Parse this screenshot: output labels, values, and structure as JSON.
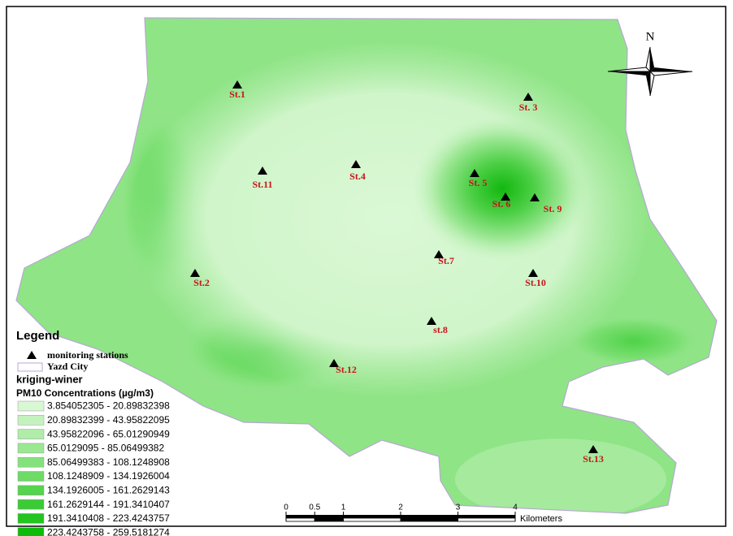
{
  "map": {
    "north_label": "N",
    "stations": [
      "St.1",
      "St. 3",
      "St.11",
      "St.4",
      "St. 5",
      "St. 6",
      "St. 9",
      "St.7",
      "St.2",
      "St.10",
      "st.8",
      "St.12",
      "St.13"
    ],
    "legend": {
      "title": "Legend",
      "station_symbol": "monitoring stations",
      "boundary": "Yazd City",
      "layer": "kriging-winer",
      "field": "PM10 Concentrations (µg/m3)",
      "classes": [
        {
          "label": "3.854052305 - 20.89832398",
          "color": "#d8f7d3"
        },
        {
          "label": "20.89832399 - 43.95822095",
          "color": "#c4f2be"
        },
        {
          "label": "43.95822096 - 65.01290949",
          "color": "#afeda8"
        },
        {
          "label": "65.0129095 - 85.06499382",
          "color": "#9ae892"
        },
        {
          "label": "85.06499383 - 108.1248908",
          "color": "#84e27c"
        },
        {
          "label": "108.1248909 - 134.1926004",
          "color": "#6ddb65"
        },
        {
          "label": "134.1926005 - 161.2629143",
          "color": "#55d44d"
        },
        {
          "label": "161.2629144 - 191.3410407",
          "color": "#3bcb35"
        },
        {
          "label": "191.3410408 - 223.4243757",
          "color": "#22c41e"
        },
        {
          "label": "223.4243758 - 259.5181274",
          "color": "#0dbc0b"
        }
      ]
    },
    "scale_bar": {
      "ticks": [
        0,
        0.5,
        1,
        2,
        3,
        4
      ],
      "unit": "Kilometers"
    }
  }
}
